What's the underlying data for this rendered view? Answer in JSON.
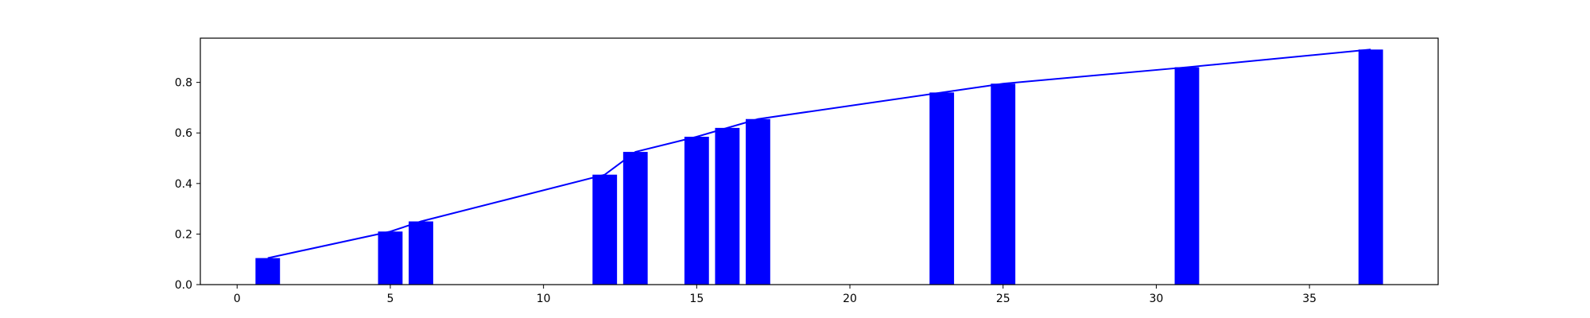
{
  "chart_data": {
    "type": "bar",
    "title": "",
    "xlabel": "",
    "ylabel": "",
    "x": [
      1,
      5,
      6,
      12,
      13,
      15,
      16,
      17,
      23,
      25,
      31,
      37
    ],
    "values": [
      0.105,
      0.21,
      0.25,
      0.435,
      0.525,
      0.585,
      0.62,
      0.655,
      0.76,
      0.795,
      0.86,
      0.93
    ],
    "overlay_line": {
      "type": "line",
      "x": [
        1,
        5,
        6,
        12,
        13,
        15,
        16,
        17,
        23,
        25,
        31,
        37
      ],
      "y": [
        0.105,
        0.21,
        0.25,
        0.435,
        0.525,
        0.585,
        0.62,
        0.655,
        0.76,
        0.795,
        0.86,
        0.93
      ]
    },
    "xlim": [
      -1.2,
      39.2
    ],
    "ylim": [
      0,
      0.975
    ],
    "x_ticks": [
      0,
      5,
      10,
      15,
      20,
      25,
      30,
      35
    ],
    "y_ticks": [
      0.0,
      0.2,
      0.4,
      0.6,
      0.8
    ],
    "x_tick_labels": [
      "0",
      "5",
      "10",
      "15",
      "20",
      "25",
      "30",
      "35"
    ],
    "y_tick_labels": [
      "0.0",
      "0.2",
      "0.4",
      "0.6",
      "0.8"
    ],
    "grid": false,
    "legend": "none",
    "colors": {
      "bar": "#0000ff",
      "line": "#0000ff",
      "axes": "#000000"
    }
  }
}
